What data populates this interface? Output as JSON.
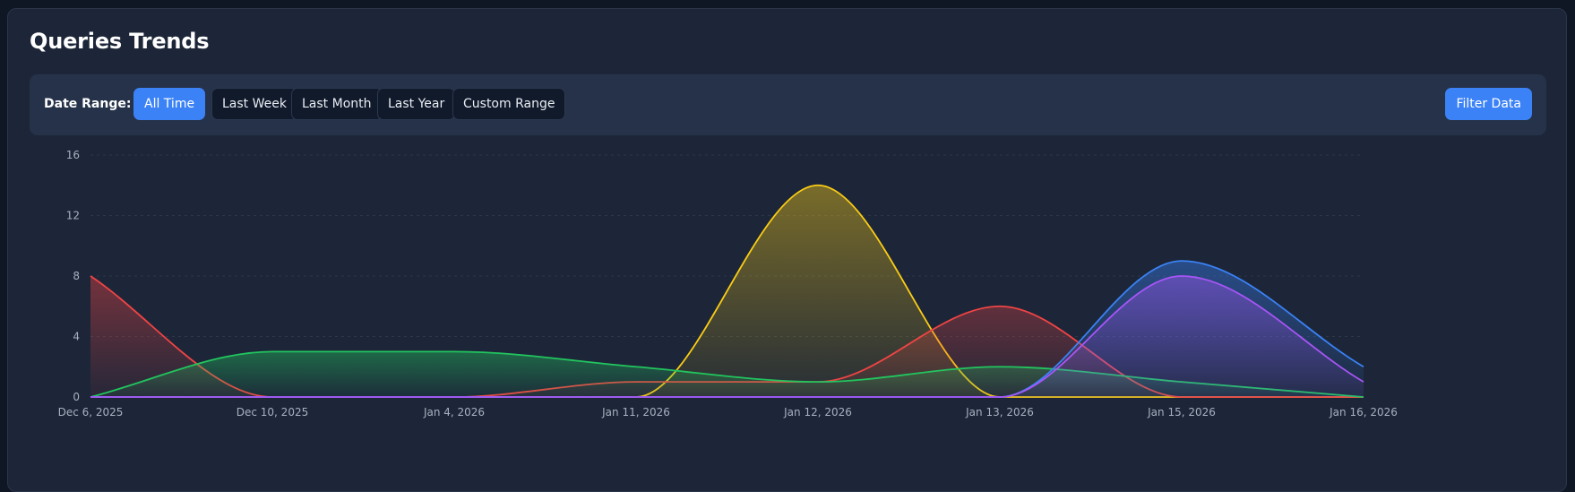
{
  "header": {
    "title": "Queries Trends"
  },
  "filters": {
    "label": "Date Range:",
    "ranges": [
      {
        "label": "All Time",
        "active": true
      },
      {
        "label": "Last Week",
        "active": false
      },
      {
        "label": "Last Month",
        "active": false
      },
      {
        "label": "Last Year",
        "active": false
      },
      {
        "label": "Custom Range",
        "active": false
      }
    ],
    "apply_label": "Filter Data"
  },
  "colors": {
    "accent": "#3b82f6",
    "panel": "#1c2638",
    "filter_bar": "#253249",
    "grid": "#2d3748"
  },
  "chart_data": {
    "type": "area",
    "title": "",
    "xlabel": "",
    "ylabel": "",
    "categories": [
      "Dec 6, 2025",
      "Dec 10, 2025",
      "Jan 4, 2026",
      "Jan 11, 2026",
      "Jan 12, 2026",
      "Jan 13, 2026",
      "Jan 15, 2026",
      "Jan 16, 2026"
    ],
    "y_ticks": [
      0,
      4,
      8,
      12,
      16
    ],
    "ylim": [
      0,
      16
    ],
    "grid": true,
    "legend": "none",
    "curve": "smooth",
    "series": [
      {
        "color": "#facc15",
        "values": [
          0,
          0,
          0,
          0,
          14,
          0,
          0,
          0
        ]
      },
      {
        "color": "#ef4444",
        "values": [
          8,
          0,
          0,
          1,
          1,
          6,
          0,
          0
        ]
      },
      {
        "color": "#22c55e",
        "values": [
          0,
          3,
          3,
          2,
          1,
          2,
          1,
          0
        ]
      },
      {
        "color": "#3b82f6",
        "values": [
          0,
          0,
          0,
          0,
          0,
          0,
          9,
          2
        ]
      },
      {
        "color": "#a855f7",
        "values": [
          0,
          0,
          0,
          0,
          0,
          0,
          8,
          1
        ]
      }
    ]
  }
}
